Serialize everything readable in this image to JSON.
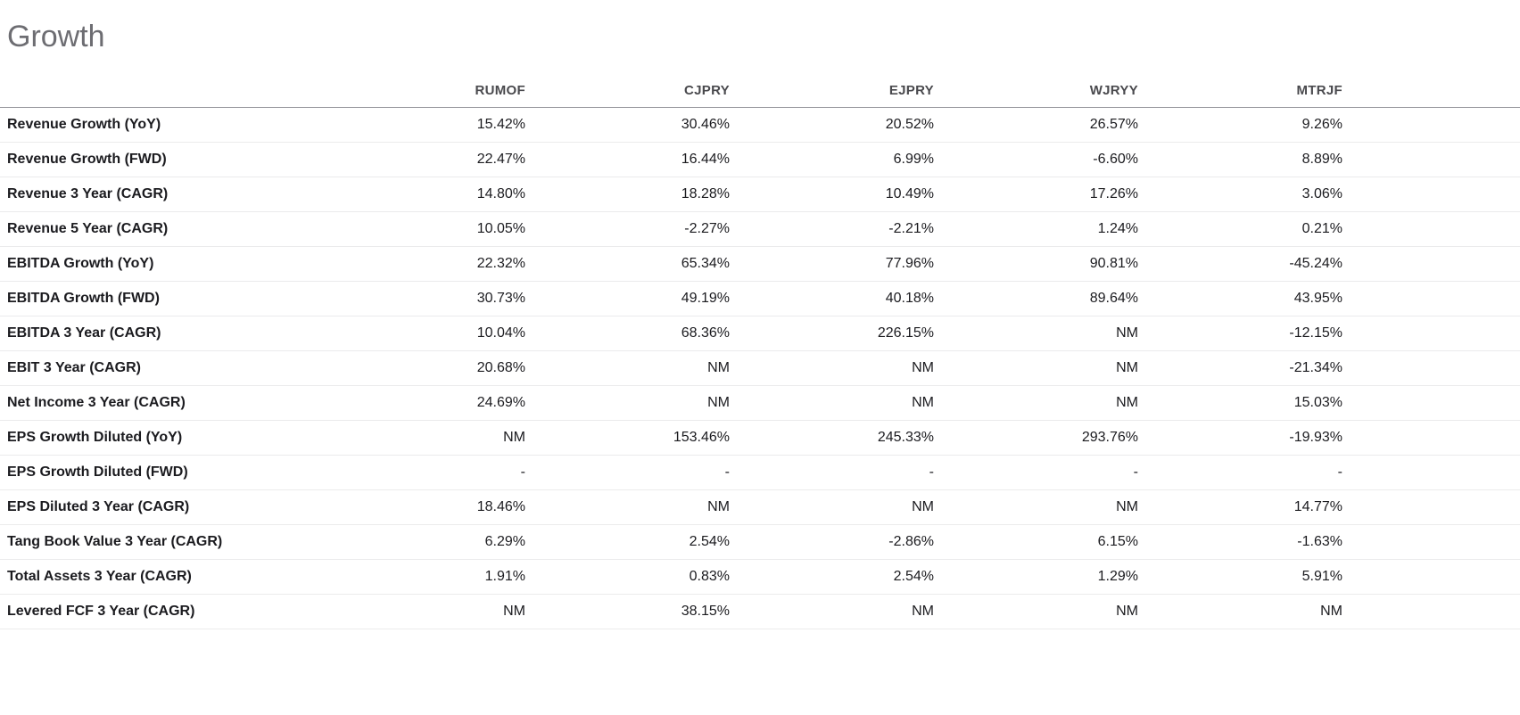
{
  "page": {
    "title": "Growth"
  },
  "table": {
    "tickers": [
      "RUMOF",
      "CJPRY",
      "EJPRY",
      "WJRYY",
      "MTRJF"
    ],
    "rows": [
      {
        "label": "Revenue Growth (YoY)",
        "values": [
          "15.42%",
          "30.46%",
          "20.52%",
          "26.57%",
          "9.26%"
        ]
      },
      {
        "label": "Revenue Growth (FWD)",
        "values": [
          "22.47%",
          "16.44%",
          "6.99%",
          "-6.60%",
          "8.89%"
        ]
      },
      {
        "label": "Revenue 3 Year (CAGR)",
        "values": [
          "14.80%",
          "18.28%",
          "10.49%",
          "17.26%",
          "3.06%"
        ]
      },
      {
        "label": "Revenue 5 Year (CAGR)",
        "values": [
          "10.05%",
          "-2.27%",
          "-2.21%",
          "1.24%",
          "0.21%"
        ]
      },
      {
        "label": "EBITDA Growth (YoY)",
        "values": [
          "22.32%",
          "65.34%",
          "77.96%",
          "90.81%",
          "-45.24%"
        ]
      },
      {
        "label": "EBITDA Growth (FWD)",
        "values": [
          "30.73%",
          "49.19%",
          "40.18%",
          "89.64%",
          "43.95%"
        ]
      },
      {
        "label": "EBITDA 3 Year (CAGR)",
        "values": [
          "10.04%",
          "68.36%",
          "226.15%",
          "NM",
          "-12.15%"
        ]
      },
      {
        "label": "EBIT 3 Year (CAGR)",
        "values": [
          "20.68%",
          "NM",
          "NM",
          "NM",
          "-21.34%"
        ]
      },
      {
        "label": "Net Income 3 Year (CAGR)",
        "values": [
          "24.69%",
          "NM",
          "NM",
          "NM",
          "15.03%"
        ]
      },
      {
        "label": "EPS Growth Diluted (YoY)",
        "values": [
          "NM",
          "153.46%",
          "245.33%",
          "293.76%",
          "-19.93%"
        ]
      },
      {
        "label": "EPS Growth Diluted (FWD)",
        "values": [
          "-",
          "-",
          "-",
          "-",
          "-"
        ]
      },
      {
        "label": "EPS Diluted 3 Year (CAGR)",
        "values": [
          "18.46%",
          "NM",
          "NM",
          "NM",
          "14.77%"
        ]
      },
      {
        "label": "Tang Book Value 3 Year (CAGR)",
        "values": [
          "6.29%",
          "2.54%",
          "-2.86%",
          "6.15%",
          "-1.63%"
        ]
      },
      {
        "label": "Total Assets 3 Year (CAGR)",
        "values": [
          "1.91%",
          "0.83%",
          "2.54%",
          "1.29%",
          "5.91%"
        ]
      },
      {
        "label": "Levered FCF 3 Year (CAGR)",
        "values": [
          "NM",
          "38.15%",
          "NM",
          "NM",
          "NM"
        ]
      }
    ]
  },
  "colors": {
    "background": "#ffffff",
    "title": "#6d6d72",
    "header_text": "#49494d",
    "header_border": "#97979c",
    "row_border": "#ebebec",
    "cell_text": "#1b1b1f"
  }
}
